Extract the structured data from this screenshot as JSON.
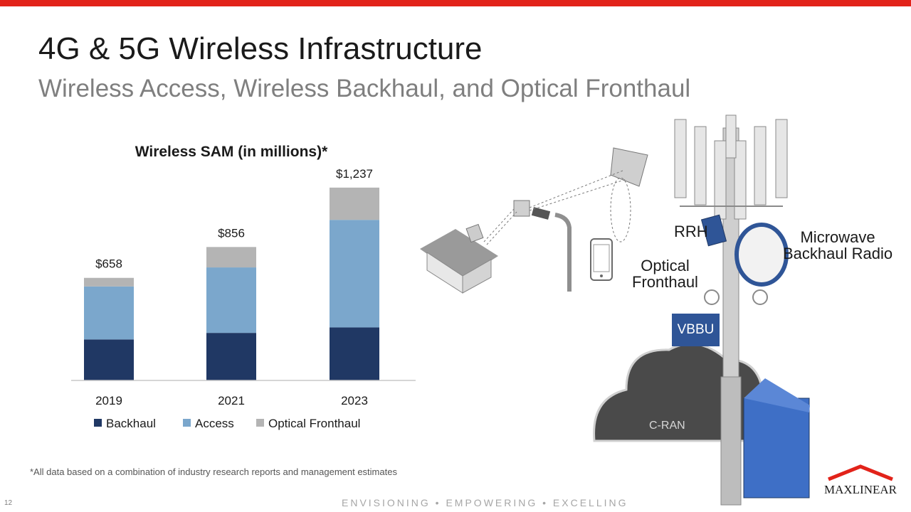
{
  "slide": {
    "title": "4G & 5G Wireless Infrastructure",
    "subtitle": "Wireless Access, Wireless Backhaul, and Optical Fronthaul",
    "footnote": "*All data based on a combination of industry research reports and management estimates",
    "page_number": "12",
    "tagline": "ENVISIONING • EMPOWERING • EXCELLING",
    "logo_text": "MAXLINEAR",
    "accent_color": "#e2231a"
  },
  "chart_data": {
    "type": "bar",
    "stacked": true,
    "title": "Wireless SAM (in millions)*",
    "categories": [
      "2019",
      "2021",
      "2023"
    ],
    "series": [
      {
        "name": "Backhaul",
        "color": "#203864",
        "values": [
          263,
          305,
          340
        ]
      },
      {
        "name": "Access",
        "color": "#7ba7cc",
        "values": [
          340,
          420,
          690
        ]
      },
      {
        "name": "Optical Fronthaul",
        "color": "#b4b4b4",
        "values": [
          55,
          131,
          207
        ]
      }
    ],
    "totals": [
      "$658",
      "$856",
      "$1,237"
    ],
    "ylim": [
      0,
      1300
    ],
    "legend_position": "bottom",
    "grid": false
  },
  "diagram": {
    "rrh_label": "RRH",
    "microwave_label_line1": "Microwave",
    "microwave_label_line2": "Backhaul Radio",
    "optical_label_line1": "Optical",
    "optical_label_line2": "Fronthaul",
    "vbbu_label": "VBBU",
    "cran_label": "C-RAN"
  }
}
